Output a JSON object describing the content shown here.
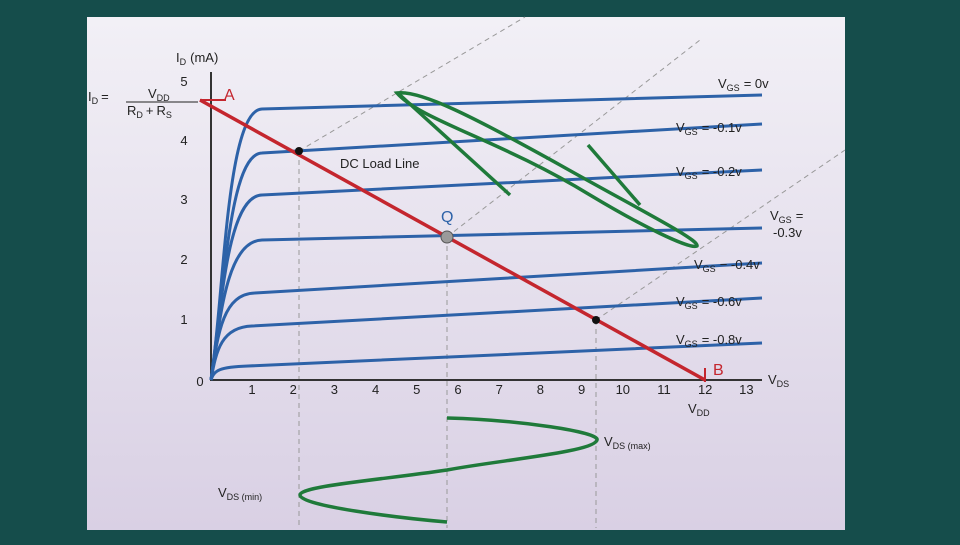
{
  "y_axis": {
    "symbol": "I",
    "sub": "D",
    "unit": "(mA)",
    "ticks": [
      "0",
      "1",
      "2",
      "3",
      "4",
      "5"
    ]
  },
  "x_axis": {
    "symbol": "V",
    "sub": "DS",
    "ticks": [
      "1",
      "2",
      "3",
      "4",
      "5",
      "6",
      "7",
      "8",
      "9",
      "10",
      "11",
      "12",
      "13"
    ]
  },
  "formula": {
    "lhs_symbol": "I",
    "lhs_sub": "D",
    "equals": "=",
    "num_symbol": "V",
    "num_sub": "DD",
    "den_symbol_1": "R",
    "den_sub_1": "D",
    "plus": "+",
    "den_symbol_2": "R",
    "den_sub_2": "S"
  },
  "curves": [
    {
      "symbol": "V",
      "sub": "GS",
      "value": "= 0v"
    },
    {
      "symbol": "V",
      "sub": "GS",
      "value": "= -0.1v"
    },
    {
      "symbol": "V",
      "sub": "GS",
      "value": "= -0.2v"
    },
    {
      "symbol": "V",
      "sub": "GS",
      "value": "=",
      "value2": "-0.3v"
    },
    {
      "symbol": "V",
      "sub": "GS",
      "value": "− -0.4v"
    },
    {
      "symbol": "V",
      "sub": "GS",
      "value": "= -0.6v"
    },
    {
      "symbol": "V",
      "sub": "GS",
      "value": "= -0.8v"
    }
  ],
  "load_line": "DC Load Line",
  "points": {
    "a": "A",
    "b": "B",
    "q": "Q"
  },
  "vdd": {
    "symbol": "V",
    "sub": "DD"
  },
  "vds_max": {
    "symbol": "V",
    "sub": "DS (max)"
  },
  "vds_min": {
    "symbol": "V",
    "sub": "DS (min)"
  }
}
